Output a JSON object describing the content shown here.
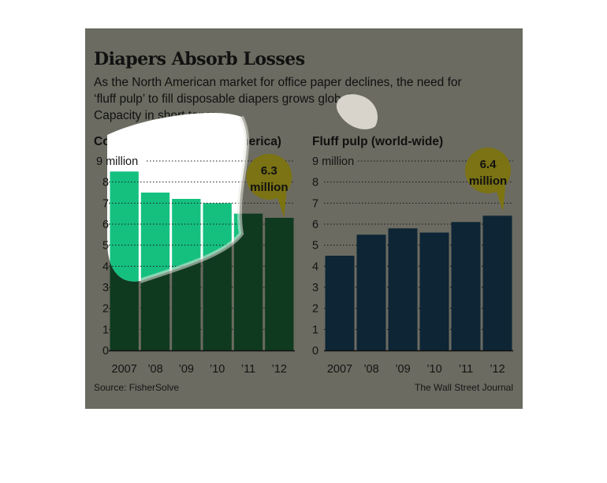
{
  "header": {
    "title": "Diapers Absorb Losses",
    "subtitle_lines": [
      "As the North American market for office paper declines, the need for",
      "‘fluff pulp’ to fill disposable diapers grows globally.",
      "Capacity in short tons:"
    ]
  },
  "footer": {
    "source": "Source: FisherSolve",
    "credit": "The Wall Street Journal"
  },
  "chart_data": [
    {
      "type": "bar",
      "title": "Copy and offset (North America)",
      "categories": [
        "2007",
        "’08",
        "’09",
        "’10",
        "’11",
        "’12"
      ],
      "values": [
        8.5,
        7.5,
        7.2,
        7.0,
        6.5,
        6.3
      ],
      "ylim": [
        0,
        9
      ],
      "yticks": [
        "0",
        "1",
        "2",
        "3",
        "4",
        "5",
        "6",
        "7",
        "8",
        "9 million"
      ],
      "grid": "dotted",
      "callout": {
        "category_index": 5,
        "lines": [
          "6.3",
          "million"
        ]
      },
      "colors": {
        "bar": "#0f3a20",
        "bar_highlight": "#15c07f",
        "callout": "#7c7410"
      }
    },
    {
      "type": "bar",
      "title": "Fluff pulp (world-wide)",
      "categories": [
        "2007",
        "’08",
        "’09",
        "’10",
        "’11",
        "’12"
      ],
      "values": [
        4.5,
        5.5,
        5.8,
        5.6,
        6.1,
        6.4
      ],
      "ylim": [
        0,
        9
      ],
      "yticks": [
        "0",
        "1",
        "2",
        "3",
        "4",
        "5",
        "6",
        "7",
        "8",
        "9 million"
      ],
      "grid": "dotted",
      "callout": {
        "category_index": 5,
        "lines": [
          "6.4",
          "million"
        ]
      },
      "colors": {
        "bar": "#0d2535",
        "callout": "#7c7410"
      }
    }
  ]
}
